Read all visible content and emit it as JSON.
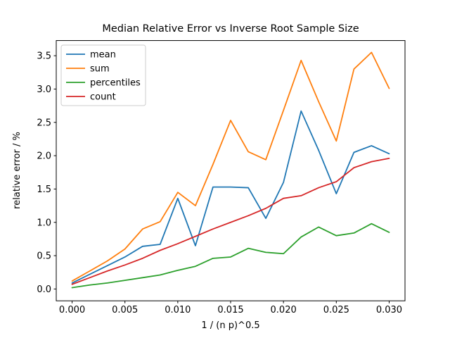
{
  "figure": {
    "background": "#ffffff",
    "frame_color": "#000000"
  },
  "chart_data": {
    "type": "line",
    "title": "Median Relative Error vs Inverse Root Sample Size",
    "xlabel": "1 / (n p)^0.5",
    "ylabel": "relative error / %",
    "grid": false,
    "legend_position": "upper left",
    "xlim": [
      -0.0015,
      0.0315
    ],
    "ylim": [
      -0.1775,
      3.7275
    ],
    "x_ticks": {
      "values": [
        0.0,
        0.005,
        0.01,
        0.015,
        0.02,
        0.025,
        0.03
      ],
      "labels": [
        "0.000",
        "0.005",
        "0.010",
        "0.015",
        "0.020",
        "0.025",
        "0.030"
      ]
    },
    "y_ticks": {
      "values": [
        0.0,
        0.5,
        1.0,
        1.5,
        2.0,
        2.5,
        3.0,
        3.5
      ],
      "labels": [
        "0.0",
        "0.5",
        "1.0",
        "1.5",
        "2.0",
        "2.5",
        "3.0",
        "3.5"
      ]
    },
    "x": [
      0.0,
      0.00167,
      0.00333,
      0.005,
      0.00667,
      0.00833,
      0.01,
      0.01167,
      0.01333,
      0.015,
      0.01667,
      0.01833,
      0.02,
      0.02167,
      0.02333,
      0.025,
      0.02667,
      0.02833,
      0.03
    ],
    "series": [
      {
        "name": "mean",
        "color": "#1f77b4",
        "values": [
          0.09,
          0.22,
          0.35,
          0.48,
          0.64,
          0.67,
          1.36,
          0.65,
          1.53,
          1.53,
          1.52,
          1.06,
          1.6,
          2.67,
          2.08,
          1.43,
          2.05,
          2.15,
          2.03
        ]
      },
      {
        "name": "sum",
        "color": "#ff7f0e",
        "values": [
          0.12,
          0.27,
          0.42,
          0.6,
          0.9,
          1.01,
          1.45,
          1.25,
          1.87,
          2.53,
          2.06,
          1.94,
          2.68,
          3.43,
          2.81,
          2.22,
          3.3,
          3.55,
          3.01
        ]
      },
      {
        "name": "percentiles",
        "color": "#2ca02c",
        "values": [
          0.02,
          0.06,
          0.09,
          0.13,
          0.17,
          0.21,
          0.28,
          0.34,
          0.46,
          0.48,
          0.61,
          0.55,
          0.53,
          0.78,
          0.93,
          0.8,
          0.84,
          0.98,
          0.85
        ]
      },
      {
        "name": "count",
        "color": "#d62728",
        "values": [
          0.07,
          0.17,
          0.27,
          0.36,
          0.46,
          0.58,
          0.68,
          0.79,
          0.9,
          1.0,
          1.1,
          1.21,
          1.36,
          1.4,
          1.52,
          1.61,
          1.82,
          1.91,
          1.96
        ]
      }
    ]
  }
}
